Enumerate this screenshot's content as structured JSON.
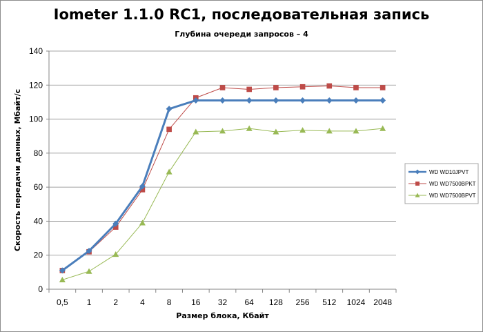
{
  "chart_data": {
    "type": "line",
    "title": "Iometer 1.1.0 RC1, последовательная запись",
    "subtitle": "Глубина очереди запросов – 4",
    "xlabel": "Размер блока, Кбайт",
    "ylabel": "Скорость передачи данных, Мбайт/с",
    "categories": [
      "0,5",
      "1",
      "2",
      "4",
      "8",
      "16",
      "32",
      "64",
      "128",
      "256",
      "512",
      "1024",
      "2048"
    ],
    "ylim": [
      0,
      140
    ],
    "yticks": [
      0,
      20,
      40,
      60,
      80,
      100,
      120,
      140
    ],
    "grid": true,
    "legend_position": "right",
    "series": [
      {
        "name": "WD WD10JPVT",
        "color": "#4a7ebb",
        "marker": "diamond",
        "values": [
          11.0,
          22.5,
          38.5,
          60.5,
          106.0,
          111.0,
          111.0,
          111.0,
          111.0,
          111.0,
          111.0,
          111.0,
          111.0
        ]
      },
      {
        "name": "WD WD7500BPKT",
        "color": "#be4b48",
        "marker": "square",
        "values": [
          11.0,
          22.0,
          36.5,
          58.5,
          94.0,
          112.5,
          118.5,
          117.5,
          118.5,
          119.0,
          119.5,
          118.5,
          118.5
        ]
      },
      {
        "name": "WD WD7500BPVT",
        "color": "#98b954",
        "marker": "triangle",
        "values": [
          5.5,
          10.5,
          20.5,
          39.0,
          69.0,
          92.5,
          93.0,
          94.5,
          92.5,
          93.5,
          93.0,
          93.0,
          94.5
        ]
      }
    ]
  }
}
